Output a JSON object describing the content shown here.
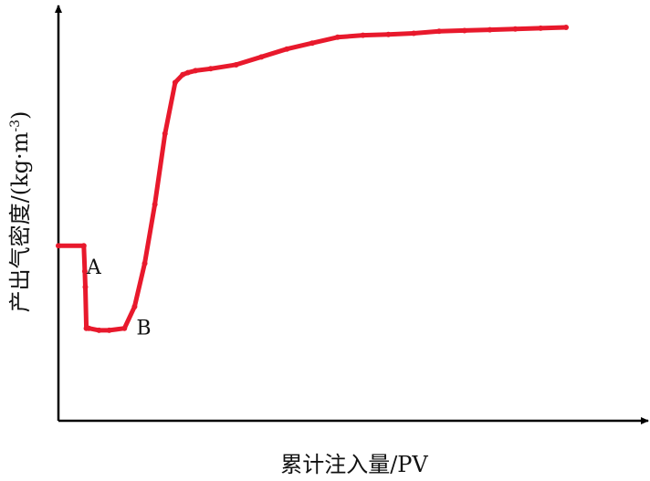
{
  "chart_data": {
    "type": "line",
    "title": "",
    "xlabel": "累计注入量/PV",
    "ylabel": "产出气密度/(kg·m",
    "ylabel_superscript": "-3",
    "xlim": [
      0,
      1
    ],
    "ylim": [
      0,
      1
    ],
    "x_ticks_labeled": false,
    "y_ticks_labeled": false,
    "grid": false,
    "legend": "none",
    "series": [
      {
        "color": "#e8192c",
        "x": [
          0.0,
          0.05,
          0.052,
          0.053,
          0.055,
          0.06,
          0.08,
          0.1,
          0.13,
          0.15,
          0.17,
          0.19,
          0.21,
          0.23,
          0.245,
          0.255,
          0.27,
          0.3,
          0.35,
          0.4,
          0.45,
          0.5,
          0.55,
          0.6,
          0.65,
          0.7,
          0.75,
          0.8,
          0.85,
          0.9,
          0.95,
          1.0
        ],
        "y": [
          0.445,
          0.445,
          0.38,
          0.34,
          0.235,
          0.235,
          0.23,
          0.23,
          0.235,
          0.29,
          0.4,
          0.55,
          0.73,
          0.86,
          0.88,
          0.885,
          0.89,
          0.895,
          0.905,
          0.925,
          0.945,
          0.96,
          0.975,
          0.98,
          0.982,
          0.985,
          0.99,
          0.992,
          0.994,
          0.996,
          0.998,
          1.0
        ]
      }
    ],
    "annotations": [
      {
        "text": "A",
        "x": 0.052,
        "y": 0.39
      },
      {
        "text": "B",
        "x": 0.15,
        "y": 0.235
      }
    ]
  }
}
